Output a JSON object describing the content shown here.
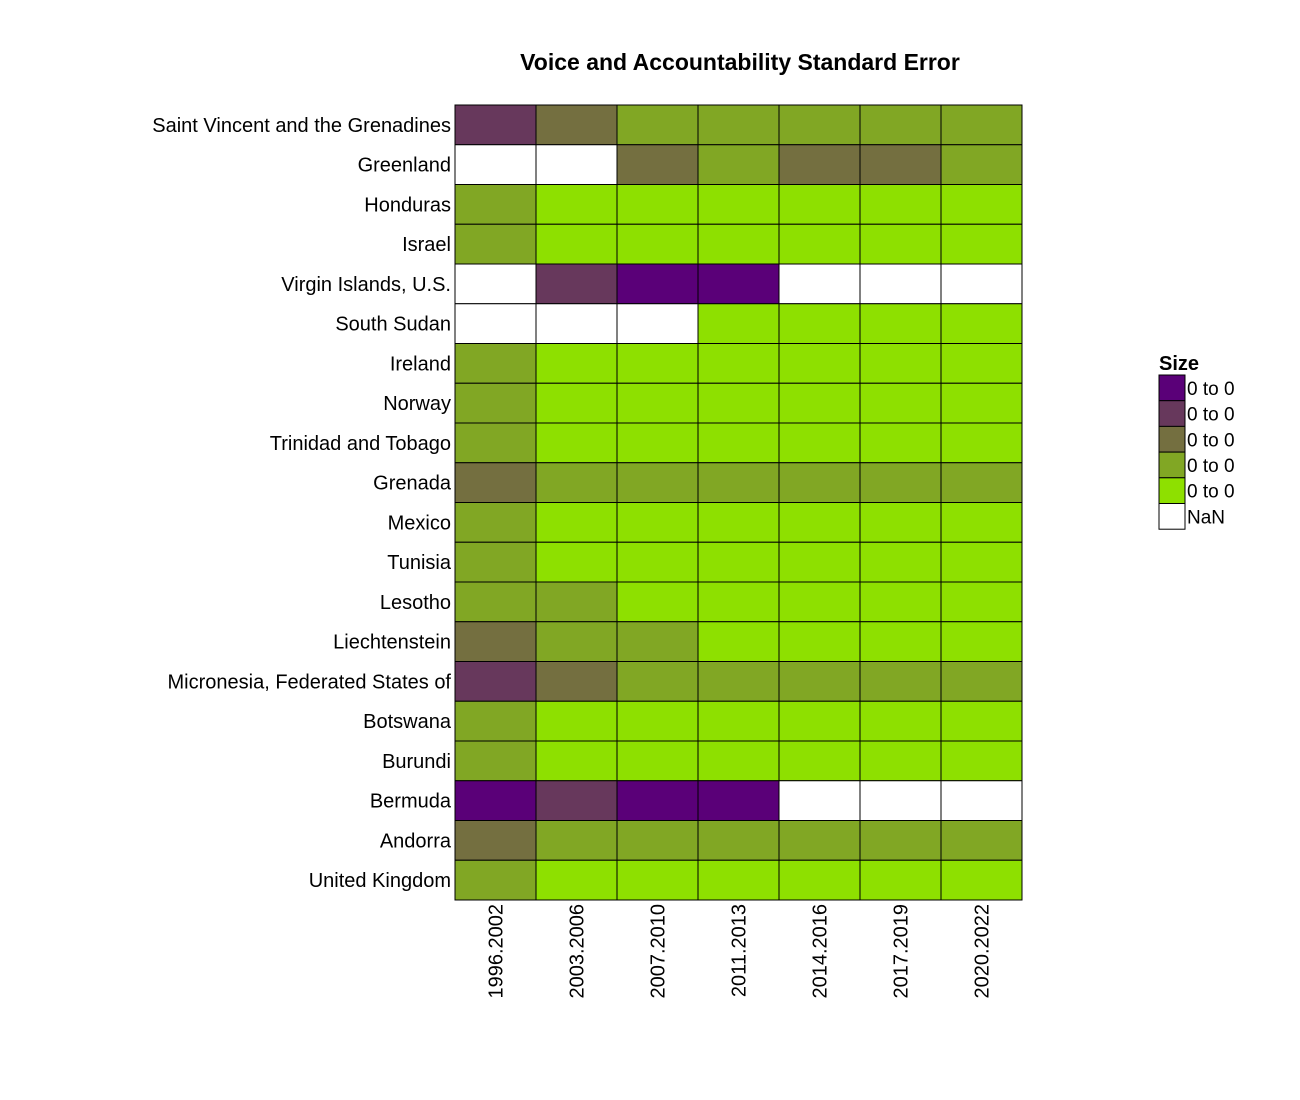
{
  "chart_data": {
    "type": "heatmap",
    "title": "Voice and Accountability Standard Error",
    "xlabel": "",
    "ylabel": "",
    "columns": [
      "1996.2002",
      "2003.2006",
      "2007.2010",
      "2011.2013",
      "2014.2016",
      "2017.2019",
      "2020.2022"
    ],
    "rows": [
      "Saint Vincent and the Grenadines",
      "Greenland",
      "Honduras",
      "Israel",
      "Virgin Islands, U.S.",
      "South Sudan",
      "Ireland",
      "Norway",
      "Trinidad and Tobago",
      "Grenada",
      "Mexico",
      "Tunisia",
      "Lesotho",
      "Liechtenstein",
      "Micronesia, Federated States of",
      "Botswana",
      "Burundi",
      "Bermuda",
      "Andorra",
      "United Kingdom"
    ],
    "bin_values": [
      [
        1,
        2,
        3,
        3,
        3,
        3,
        3
      ],
      [
        null,
        null,
        2,
        3,
        2,
        2,
        3
      ],
      [
        3,
        4,
        4,
        4,
        4,
        4,
        4
      ],
      [
        3,
        4,
        4,
        4,
        4,
        4,
        4
      ],
      [
        null,
        1,
        0,
        0,
        null,
        null,
        null
      ],
      [
        null,
        null,
        null,
        4,
        4,
        4,
        4
      ],
      [
        3,
        4,
        4,
        4,
        4,
        4,
        4
      ],
      [
        3,
        4,
        4,
        4,
        4,
        4,
        4
      ],
      [
        3,
        4,
        4,
        4,
        4,
        4,
        4
      ],
      [
        2,
        3,
        3,
        3,
        3,
        3,
        3
      ],
      [
        3,
        4,
        4,
        4,
        4,
        4,
        4
      ],
      [
        3,
        4,
        4,
        4,
        4,
        4,
        4
      ],
      [
        3,
        3,
        4,
        4,
        4,
        4,
        4
      ],
      [
        2,
        3,
        3,
        4,
        4,
        4,
        4
      ],
      [
        1,
        2,
        3,
        3,
        3,
        3,
        3
      ],
      [
        3,
        4,
        4,
        4,
        4,
        4,
        4
      ],
      [
        3,
        4,
        4,
        4,
        4,
        4,
        4
      ],
      [
        0,
        1,
        0,
        0,
        null,
        null,
        null
      ],
      [
        2,
        3,
        3,
        3,
        3,
        3,
        3
      ],
      [
        3,
        4,
        4,
        4,
        4,
        4,
        4
      ]
    ],
    "legend": {
      "title": "Size",
      "position": "right",
      "entries": [
        {
          "label": "0 to 0",
          "color": "#5a0078"
        },
        {
          "label": "0 to 0",
          "color": "#67385c"
        },
        {
          "label": "0 to 0",
          "color": "#746f40"
        },
        {
          "label": "0 to 0",
          "color": "#81a724"
        },
        {
          "label": "0 to 0",
          "color": "#8ee000"
        },
        {
          "label": "NaN",
          "color": "#ffffff"
        }
      ]
    },
    "grid": false
  }
}
